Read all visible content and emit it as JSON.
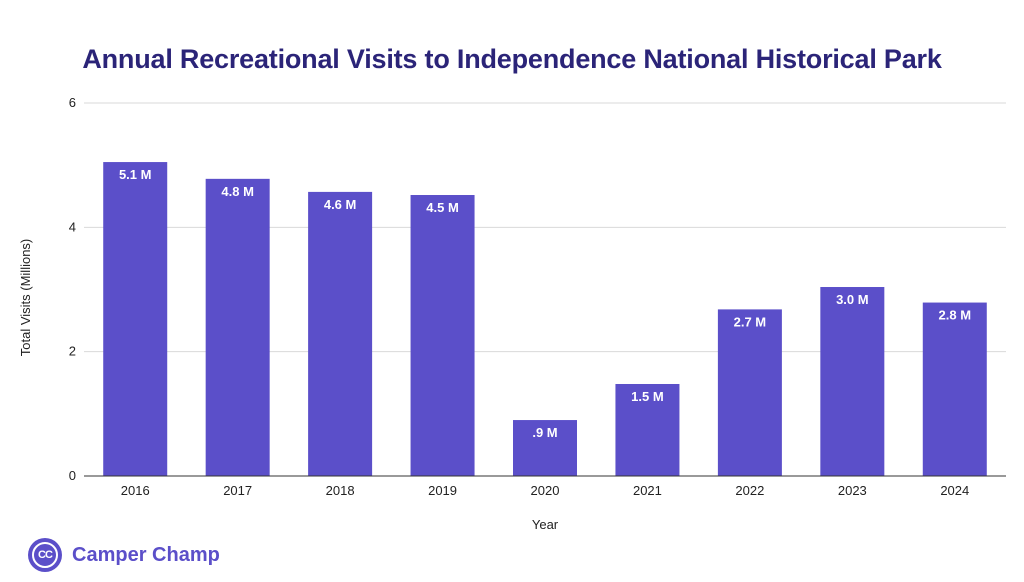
{
  "chart_data": {
    "type": "bar",
    "title": "Annual Recreational Visits to Independence National Historical Park",
    "xlabel": "Year",
    "ylabel": "Total Visits (Millions)",
    "categories": [
      "2016",
      "2017",
      "2018",
      "2019",
      "2020",
      "2021",
      "2022",
      "2023",
      "2024"
    ],
    "values": [
      5.05,
      4.78,
      4.57,
      4.52,
      0.9,
      1.48,
      2.68,
      3.04,
      2.79
    ],
    "data_labels": [
      "5.1 M",
      "4.8 M",
      "4.6 M",
      "4.5 M",
      ".9 M",
      "1.5 M",
      "2.7 M",
      "3.0 M",
      "2.8 M"
    ],
    "ylim": [
      0,
      6
    ],
    "yticks": [
      "0",
      "2",
      "4",
      "6"
    ],
    "grid": true,
    "legend": "none",
    "bar_color": "#5b4fc9"
  },
  "brand": {
    "logo_text": "CC",
    "name": "Camper Champ",
    "color": "#5b4fc9"
  },
  "colors": {
    "title": "#2b2478",
    "gridline": "#d9d9d9",
    "axis_line": "#333333"
  }
}
